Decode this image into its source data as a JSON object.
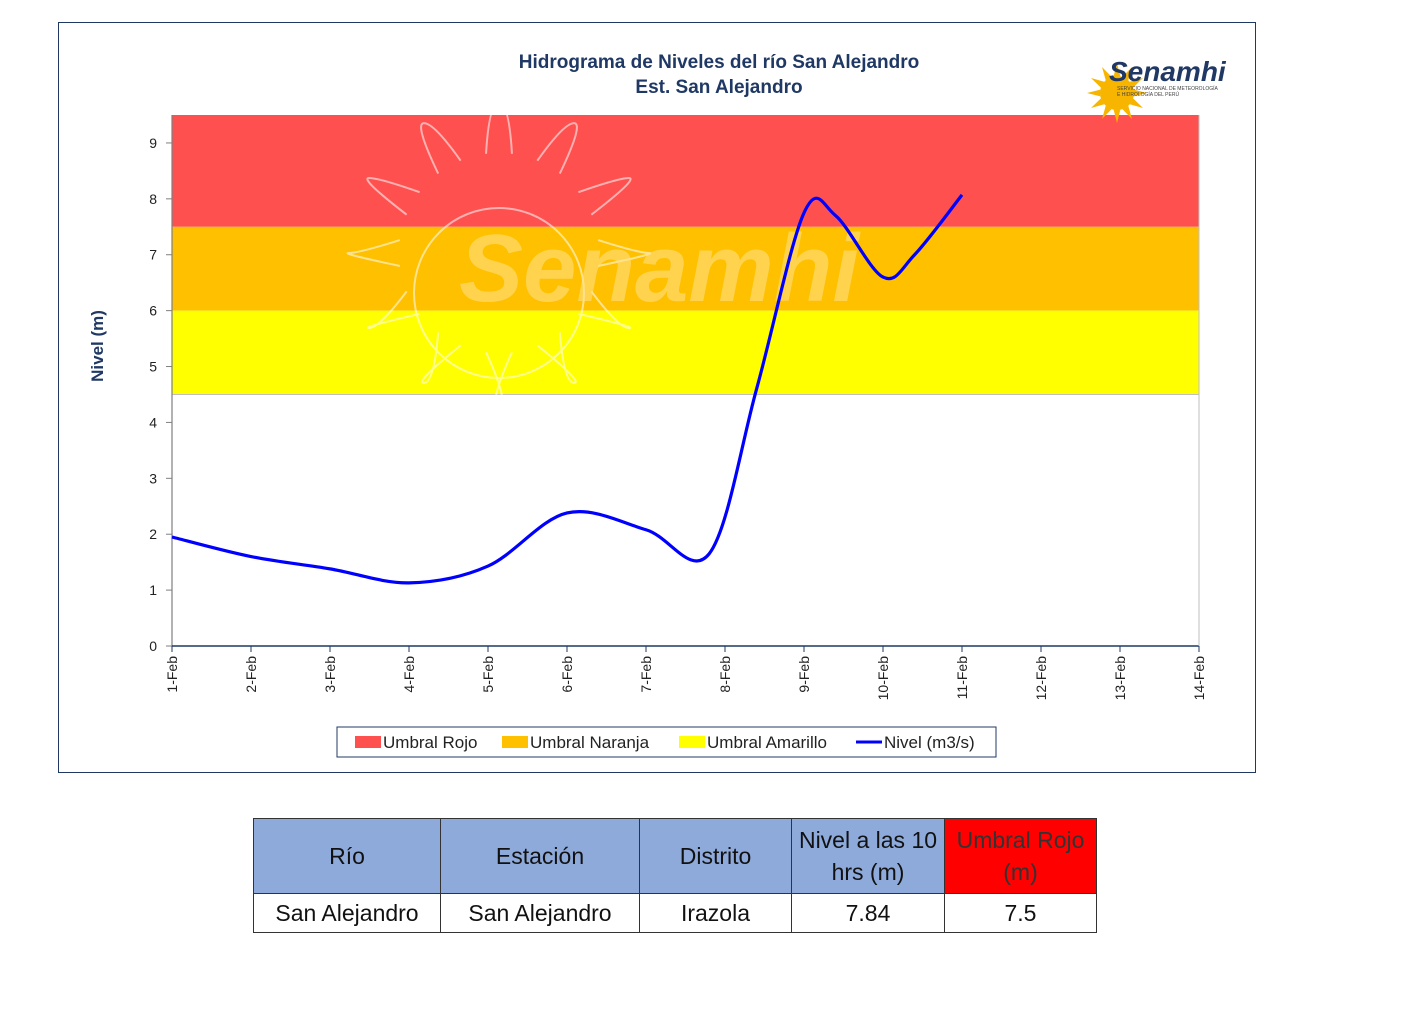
{
  "chart_data": {
    "type": "line",
    "title": "Hidrograma  de Niveles del río San Alejandro",
    "subtitle": "Est. San Alejandro",
    "ylabel": "Nivel (m)",
    "xlabel": "",
    "ylim": [
      0,
      9.5
    ],
    "yticks": [
      0,
      1,
      2,
      3,
      4,
      5,
      6,
      7,
      8,
      9
    ],
    "categories": [
      "1-Feb",
      "2-Feb",
      "3-Feb",
      "4-Feb",
      "5-Feb",
      "6-Feb",
      "7-Feb",
      "8-Feb",
      "9-Feb",
      "10-Feb",
      "11-Feb",
      "12-Feb",
      "13-Feb",
      "14-Feb"
    ],
    "bands": [
      {
        "name": "Umbral Rojo",
        "from": 7.5,
        "to": 9.5,
        "color": "#ff5050"
      },
      {
        "name": "Umbral Naranja",
        "from": 6.0,
        "to": 7.5,
        "color": "#ffc000"
      },
      {
        "name": "Umbral Amarillo",
        "from": 4.5,
        "to": 6.0,
        "color": "#ffff00"
      }
    ],
    "series": [
      {
        "name": "Nivel (m3/s)",
        "color": "#0000ff",
        "x": [
          0,
          1,
          2,
          3,
          4,
          5,
          6,
          6.8,
          7.4,
          8.0,
          8.4,
          9.0,
          9.4,
          10.0
        ],
        "values": [
          1.95,
          1.6,
          1.38,
          1.13,
          1.43,
          2.38,
          2.08,
          1.65,
          4.6,
          7.75,
          7.7,
          6.6,
          7.0,
          8.07
        ]
      }
    ],
    "legend_position": "bottom-center",
    "grid": false
  },
  "logo": {
    "text": "Senamhi",
    "subtext_1": "SERVICIO NACIONAL DE METEOROLOGÍA",
    "subtext_2": "E HIDROLOGÍA DEL PERÚ"
  },
  "watermark": {
    "text": "Senamhi"
  },
  "table": {
    "headers": [
      "Río",
      "Estación",
      "Distrito",
      "Nivel a las 10 hrs (m)",
      "Umbral Rojo (m)"
    ],
    "rows": [
      [
        "San Alejandro",
        "San Alejandro",
        "Irazola",
        "7.84",
        "7.5"
      ]
    ]
  }
}
